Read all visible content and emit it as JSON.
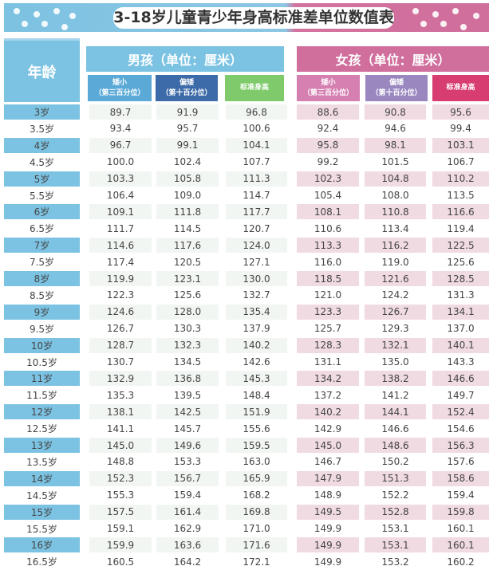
{
  "title": "3-18岁儿童青少年身高标准差单位数值表",
  "colors": {
    "boy_header": "#7cc3e3",
    "girl_header": "#d06e9c",
    "boy_col1": "#5aa9d6",
    "boy_col2": "#3d6aa8",
    "boy_col3": "#7fcb6b",
    "girl_col1": "#d680b2",
    "girl_col2": "#9a87c0",
    "girl_col3": "#d83d72"
  },
  "header": {
    "age": "年龄",
    "boys": "男孩（单位：厘米）",
    "girls": "女孩（单位：厘米）",
    "boy_cols": [
      {
        "line1": "矮小",
        "line2": "（第三百分位）"
      },
      {
        "line1": "偏矮",
        "line2": "（第十百分位）"
      },
      {
        "line1": "标准身高",
        "line2": ""
      }
    ],
    "girl_cols": [
      {
        "line1": "矮小",
        "line2": "（第三百分位）"
      },
      {
        "line1": "偏矮",
        "line2": "（第十百分位）"
      },
      {
        "line1": "标准身高",
        "line2": ""
      }
    ]
  },
  "rows": [
    [
      "3岁",
      "89.7",
      "91.9",
      "96.8",
      "88.6",
      "90.8",
      "95.6"
    ],
    [
      "3.5岁",
      "93.4",
      "95.7",
      "100.6",
      "92.4",
      "94.6",
      "99.4"
    ],
    [
      "4岁",
      "96.7",
      "99.1",
      "104.1",
      "95.8",
      "98.1",
      "103.1"
    ],
    [
      "4.5岁",
      "100.0",
      "102.4",
      "107.7",
      "99.2",
      "101.5",
      "106.7"
    ],
    [
      "5岁",
      "103.3",
      "105.8",
      "111.3",
      "102.3",
      "104.8",
      "110.2"
    ],
    [
      "5.5岁",
      "106.4",
      "109.0",
      "114.7",
      "105.4",
      "108.0",
      "113.5"
    ],
    [
      "6岁",
      "109.1",
      "111.8",
      "117.7",
      "108.1",
      "110.8",
      "116.6"
    ],
    [
      "6.5岁",
      "111.7",
      "114.5",
      "120.7",
      "110.6",
      "113.4",
      "119.4"
    ],
    [
      "7岁",
      "114.6",
      "117.6",
      "124.0",
      "113.3",
      "116.2",
      "122.5"
    ],
    [
      "7.5岁",
      "117.4",
      "120.5",
      "127.1",
      "116.0",
      "119.0",
      "125.6"
    ],
    [
      "8岁",
      "119.9",
      "123.1",
      "130.0",
      "118.5",
      "121.6",
      "128.5"
    ],
    [
      "8.5岁",
      "122.3",
      "125.6",
      "132.7",
      "121.0",
      "124.2",
      "131.3"
    ],
    [
      "9岁",
      "124.6",
      "128.0",
      "135.4",
      "123.3",
      "126.7",
      "134.1"
    ],
    [
      "9.5岁",
      "126.7",
      "130.3",
      "137.9",
      "125.7",
      "129.3",
      "137.0"
    ],
    [
      "10岁",
      "128.7",
      "132.3",
      "140.2",
      "128.3",
      "132.1",
      "140.1"
    ],
    [
      "10.5岁",
      "130.7",
      "134.5",
      "142.6",
      "131.1",
      "135.0",
      "143.3"
    ],
    [
      "11岁",
      "132.9",
      "136.8",
      "145.3",
      "134.2",
      "138.2",
      "146.6"
    ],
    [
      "11.5岁",
      "135.3",
      "139.5",
      "148.4",
      "137.2",
      "141.2",
      "149.7"
    ],
    [
      "12岁",
      "138.1",
      "142.5",
      "151.9",
      "140.2",
      "144.1",
      "152.4"
    ],
    [
      "12.5岁",
      "141.1",
      "145.7",
      "155.6",
      "142.9",
      "146.6",
      "154.6"
    ],
    [
      "13岁",
      "145.0",
      "149.6",
      "159.5",
      "145.0",
      "148.6",
      "156.3"
    ],
    [
      "13.5岁",
      "148.8",
      "153.3",
      "163.0",
      "146.7",
      "150.2",
      "157.6"
    ],
    [
      "14岁",
      "152.3",
      "156.7",
      "165.9",
      "147.9",
      "151.3",
      "158.6"
    ],
    [
      "14.5岁",
      "155.3",
      "159.4",
      "168.2",
      "148.9",
      "152.2",
      "159.4"
    ],
    [
      "15岁",
      "157.5",
      "161.4",
      "169.8",
      "149.5",
      "152.8",
      "159.8"
    ],
    [
      "15.5岁",
      "159.1",
      "162.9",
      "171.0",
      "149.9",
      "153.1",
      "160.1"
    ],
    [
      "16岁",
      "159.9",
      "163.6",
      "171.6",
      "149.9",
      "153.1",
      "160.1"
    ],
    [
      "16.5岁",
      "160.5",
      "164.2",
      "172.1",
      "149.9",
      "153.2",
      "160.2"
    ]
  ]
}
